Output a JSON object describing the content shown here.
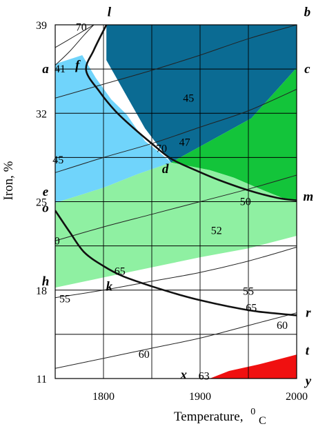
{
  "chart_data": {
    "type": "contour",
    "xlabel": "Temperature,",
    "xlabel_unit_sup": "0",
    "xlabel_unit_sub": "C",
    "ylabel": "Iron, %",
    "xlim": [
      1750,
      2000
    ],
    "ylim": [
      11,
      39
    ],
    "x_ticks": [
      {
        "value": 1800,
        "label": "1800"
      },
      {
        "value": 1900,
        "label": "1900"
      },
      {
        "value": 2000,
        "label": "2000"
      }
    ],
    "y_ticks": [
      {
        "value": 11,
        "label": "11"
      },
      {
        "value": 18,
        "label": "18"
      },
      {
        "value": 25,
        "label": "25"
      },
      {
        "value": 32,
        "label": "32"
      },
      {
        "value": 39,
        "label": "39"
      }
    ],
    "grid_x": [
      1800,
      1850,
      1900,
      1950
    ],
    "grid_y": [
      14.5,
      18,
      21.5,
      25,
      28.5,
      32,
      35.5
    ],
    "regions": [
      {
        "name": "dark-blue",
        "color": "#0b6b93",
        "points": [
          [
            1803,
            39
          ],
          [
            2000,
            39
          ],
          [
            2000,
            35.6
          ],
          [
            1953,
            31.6
          ],
          [
            1870,
            28.1
          ],
          [
            1843,
            30.8
          ],
          [
            1803,
            36.2
          ]
        ]
      },
      {
        "name": "light-blue",
        "color": "#70d4fb",
        "points": [
          [
            1750,
            35.9
          ],
          [
            1778,
            36.6
          ],
          [
            1792,
            34.8
          ],
          [
            1808,
            33.1
          ],
          [
            1824,
            31.9
          ],
          [
            1843,
            29.8
          ],
          [
            1858,
            28.9
          ],
          [
            1870,
            28.1
          ],
          [
            1836,
            27.2
          ],
          [
            1800,
            26.1
          ],
          [
            1750,
            24.9
          ]
        ]
      },
      {
        "name": "green",
        "color": "#13c43a",
        "points": [
          [
            1870,
            28.1
          ],
          [
            1953,
            31.6
          ],
          [
            2000,
            35.6
          ],
          [
            2000,
            25.1
          ],
          [
            1985,
            25.3
          ],
          [
            1959,
            26.1
          ],
          [
            1935,
            26.9
          ],
          [
            1910,
            27.5
          ]
        ]
      },
      {
        "name": "light-green",
        "color": "#8ff0a2",
        "points": [
          [
            1750,
            24.9
          ],
          [
            1800,
            26.1
          ],
          [
            1836,
            27.2
          ],
          [
            1870,
            28.1
          ],
          [
            1910,
            27.5
          ],
          [
            1935,
            26.9
          ],
          [
            1959,
            26.1
          ],
          [
            1985,
            25.3
          ],
          [
            2000,
            25.1
          ],
          [
            2000,
            22.3
          ],
          [
            1950,
            21.3
          ],
          [
            1900,
            20.6
          ],
          [
            1850,
            19.8
          ],
          [
            1800,
            19.0
          ],
          [
            1750,
            18.2
          ]
        ]
      },
      {
        "name": "red",
        "color": "#f01010",
        "points": [
          [
            1910,
            11
          ],
          [
            2000,
            11
          ],
          [
            2000,
            12.9
          ],
          [
            1985,
            12.6
          ],
          [
            1960,
            12.1
          ],
          [
            1930,
            11.6
          ]
        ]
      }
    ],
    "bold_curves": [
      {
        "name": "curve-l-m",
        "points": [
          [
            1803,
            39
          ],
          [
            1790,
            37
          ],
          [
            1782,
            35.4
          ],
          [
            1796,
            33.7
          ],
          [
            1812,
            32.2
          ],
          [
            1830,
            30.9
          ],
          [
            1850,
            29.6
          ],
          [
            1870,
            28.4
          ],
          [
            1895,
            27.5
          ],
          [
            1920,
            26.7
          ],
          [
            1950,
            25.9
          ],
          [
            1980,
            25.3
          ],
          [
            2000,
            25.1
          ]
        ]
      },
      {
        "name": "curve-o-r",
        "points": [
          [
            1750,
            24.3
          ],
          [
            1765,
            22.6
          ],
          [
            1780,
            21.0
          ],
          [
            1800,
            19.9
          ],
          [
            1820,
            19.1
          ],
          [
            1850,
            18.3
          ],
          [
            1880,
            17.6
          ],
          [
            1900,
            17.2
          ],
          [
            1930,
            16.7
          ],
          [
            1960,
            16.3
          ],
          [
            2000,
            16.0
          ]
        ]
      }
    ],
    "thin_curves": [
      {
        "name": "contour-45",
        "points": [
          [
            1750,
            33.2
          ],
          [
            1800,
            34.3
          ],
          [
            1850,
            35.4
          ],
          [
            1900,
            36.6
          ],
          [
            1950,
            37.9
          ],
          [
            2000,
            39
          ]
        ]
      },
      {
        "name": "contour-47",
        "points": [
          [
            1750,
            27.3
          ],
          [
            1800,
            28.5
          ],
          [
            1850,
            29.6
          ],
          [
            1900,
            30.9
          ],
          [
            1950,
            32.2
          ],
          [
            2000,
            33.9
          ]
        ]
      },
      {
        "name": "contour-50",
        "points": [
          [
            1750,
            21.9
          ],
          [
            1800,
            23.0
          ],
          [
            1850,
            24.0
          ],
          [
            1900,
            25.0
          ],
          [
            1950,
            26.0
          ],
          [
            2000,
            27.1
          ]
        ]
      },
      {
        "name": "contour-55",
        "points": [
          [
            1750,
            17.4
          ],
          [
            1800,
            18.0
          ],
          [
            1850,
            18.7
          ],
          [
            1900,
            19.4
          ],
          [
            1950,
            20.3
          ],
          [
            2000,
            21.4
          ]
        ]
      },
      {
        "name": "contour-60",
        "points": [
          [
            1750,
            11.8
          ],
          [
            1800,
            12.6
          ],
          [
            1850,
            13.4
          ],
          [
            1900,
            14.2
          ],
          [
            1950,
            15.2
          ],
          [
            2000,
            16.2
          ]
        ]
      },
      {
        "name": "contour-70-top",
        "points": [
          [
            1750,
            37.2
          ],
          [
            1770,
            38.1
          ],
          [
            1790,
            39
          ]
        ]
      },
      {
        "name": "contour-41",
        "points": [
          [
            1750,
            35.8
          ],
          [
            1765,
            36.9
          ],
          [
            1780,
            38.2
          ],
          [
            1790,
            39
          ]
        ]
      }
    ],
    "contour_labels": [
      {
        "text": "70",
        "x": 1777,
        "y": 38.8
      },
      {
        "text": "41",
        "x": 1755,
        "y": 35.5
      },
      {
        "text": "45",
        "x": 1888,
        "y": 33.2
      },
      {
        "text": "45",
        "x": 1753,
        "y": 28.3
      },
      {
        "text": "70",
        "x": 1860,
        "y": 29.2
      },
      {
        "text": "47",
        "x": 1884,
        "y": 29.7
      },
      {
        "text": "50",
        "x": 1947,
        "y": 25.0
      },
      {
        "text": "52",
        "x": 1917,
        "y": 22.7
      },
      {
        "text": "0",
        "x": 1752,
        "y": 21.9
      },
      {
        "text": "65",
        "x": 1817,
        "y": 19.5
      },
      {
        "text": "55",
        "x": 1950,
        "y": 17.9
      },
      {
        "text": "55",
        "x": 1760,
        "y": 17.3
      },
      {
        "text": "65",
        "x": 1953,
        "y": 16.6
      },
      {
        "text": "60",
        "x": 1985,
        "y": 15.2
      },
      {
        "text": "60",
        "x": 1842,
        "y": 12.9
      },
      {
        "text": "63",
        "x": 1904,
        "y": 11.2
      }
    ],
    "point_labels": [
      {
        "text": "l",
        "x": 1806,
        "y": 40.0
      },
      {
        "text": "b",
        "x": 2011,
        "y": 40.0
      },
      {
        "text": "f",
        "x": 1773,
        "y": 35.8
      },
      {
        "text": "a",
        "x": 1740,
        "y": 35.5
      },
      {
        "text": "c",
        "x": 2011,
        "y": 35.5
      },
      {
        "text": "d",
        "x": 1864,
        "y": 27.6
      },
      {
        "text": "e",
        "x": 1740,
        "y": 25.8
      },
      {
        "text": "m",
        "x": 2012,
        "y": 25.4
      },
      {
        "text": "o",
        "x": 1740,
        "y": 24.5
      },
      {
        "text": "h",
        "x": 1740,
        "y": 18.7
      },
      {
        "text": "k",
        "x": 1806,
        "y": 18.3
      },
      {
        "text": "r",
        "x": 2012,
        "y": 16.2
      },
      {
        "text": "x",
        "x": 1883,
        "y": 11.3
      },
      {
        "text": "t",
        "x": 2011,
        "y": 13.2
      },
      {
        "text": "y",
        "x": 2012,
        "y": 10.8
      }
    ]
  }
}
